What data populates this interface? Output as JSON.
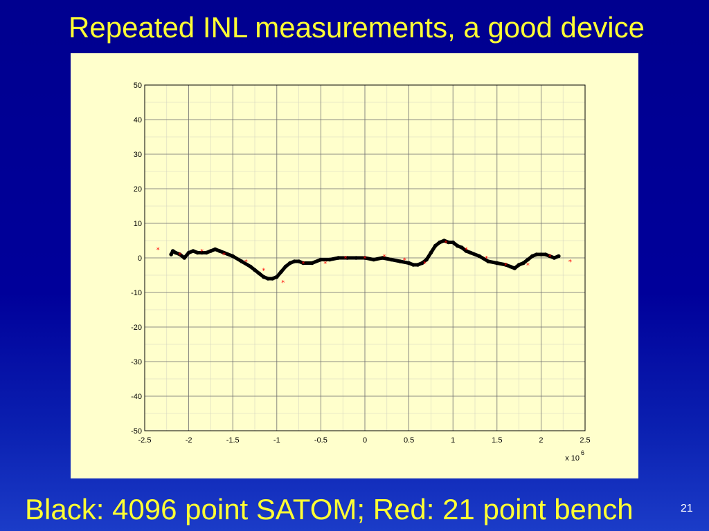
{
  "slide": {
    "title": "Repeated INL measurements, a good device",
    "caption": "Black: 4096 point SATOM; Red: 21 point bench",
    "page_number": "21"
  },
  "colors": {
    "background": "#00008f",
    "title": "#ffff33",
    "plot_panel": "#ffffcc",
    "series_black": "#000000",
    "series_red": "#ff0000"
  },
  "chart_data": {
    "type": "scatter",
    "title": "",
    "xlabel": "",
    "ylabel": "",
    "x_exponent_label": "x 10",
    "x_exponent_power": "6",
    "xlim": [
      -2.5,
      2.5
    ],
    "ylim": [
      -50,
      50
    ],
    "x_ticks": [
      "-2.5",
      "-2",
      "-1.5",
      "-1",
      "-0.5",
      "0",
      "0.5",
      "1",
      "1.5",
      "2",
      "2.5"
    ],
    "y_ticks": [
      "50",
      "40",
      "30",
      "20",
      "10",
      "0",
      "-10",
      "-20",
      "-30",
      "-40",
      "-50"
    ],
    "grid": true,
    "series": [
      {
        "name": "",
        "color": "black",
        "marker": "dot",
        "x": [
          -2.2,
          -2.18,
          -2.15,
          -2.1,
          -2.05,
          -2.0,
          -1.95,
          -1.9,
          -1.85,
          -1.8,
          -1.75,
          -1.7,
          -1.65,
          -1.6,
          -1.5,
          -1.4,
          -1.3,
          -1.25,
          -1.2,
          -1.15,
          -1.1,
          -1.05,
          -1.0,
          -0.95,
          -0.9,
          -0.85,
          -0.8,
          -0.75,
          -0.7,
          -0.6,
          -0.5,
          -0.4,
          -0.3,
          -0.2,
          -0.1,
          0.0,
          0.1,
          0.2,
          0.3,
          0.4,
          0.5,
          0.55,
          0.6,
          0.65,
          0.7,
          0.75,
          0.8,
          0.85,
          0.9,
          0.95,
          1.0,
          1.05,
          1.1,
          1.15,
          1.2,
          1.3,
          1.4,
          1.5,
          1.6,
          1.65,
          1.7,
          1.75,
          1.8,
          1.85,
          1.9,
          1.95,
          2.0,
          2.05,
          2.1,
          2.15,
          2.2
        ],
        "y": [
          1.0,
          2.0,
          1.5,
          1.0,
          0.0,
          1.5,
          2.0,
          1.5,
          1.5,
          1.5,
          2.0,
          2.5,
          2.0,
          1.5,
          0.5,
          -1.0,
          -2.5,
          -3.5,
          -4.5,
          -5.5,
          -6.0,
          -6.0,
          -5.5,
          -4.0,
          -2.5,
          -1.5,
          -1.0,
          -1.0,
          -1.5,
          -1.5,
          -0.5,
          -0.5,
          0.0,
          0.0,
          0.0,
          0.0,
          -0.5,
          0.0,
          -0.5,
          -1.0,
          -1.5,
          -2.0,
          -2.0,
          -1.5,
          -0.5,
          1.5,
          3.5,
          4.5,
          5.0,
          4.5,
          4.5,
          3.5,
          3.0,
          2.0,
          1.5,
          0.5,
          -1.0,
          -1.5,
          -2.0,
          -2.5,
          -3.0,
          -2.0,
          -1.5,
          -0.5,
          0.5,
          1.0,
          1.0,
          1.0,
          0.5,
          0.0,
          0.5
        ]
      },
      {
        "name": "",
        "color": "red",
        "marker": "star",
        "x": [
          -2.35,
          -2.1,
          -1.85,
          -1.6,
          -1.35,
          -1.15,
          -0.93,
          -0.7,
          -0.45,
          -0.22,
          0.0,
          0.22,
          0.45,
          0.68,
          0.92,
          1.15,
          1.38,
          1.6,
          1.85,
          2.1,
          2.33
        ],
        "y": [
          2.5,
          1.0,
          2.0,
          1.0,
          -1.0,
          -3.5,
          -7.0,
          -1.5,
          -1.5,
          0.0,
          0.0,
          0.5,
          -0.5,
          -1.5,
          4.5,
          2.5,
          0.0,
          -2.0,
          -2.0,
          0.5,
          -1.0
        ]
      }
    ]
  }
}
